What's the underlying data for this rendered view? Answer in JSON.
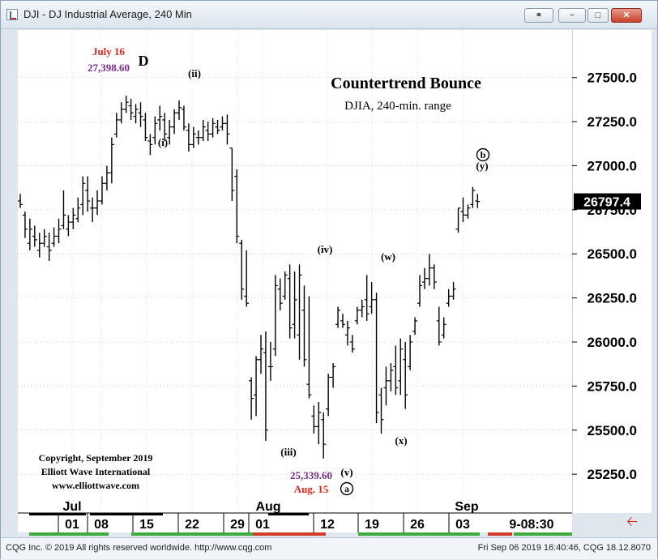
{
  "window": {
    "title": "DJI - DJ Industrial Average, 240 Min",
    "buttons": {
      "link": "⚭",
      "minimize": "−",
      "maximize": "□",
      "close": "✕"
    }
  },
  "status_bar": {
    "left": "CQG Inc. © 2019 All rights reserved worldwide. http://www.cqg.com",
    "right": "Fri Sep 06 2019 16:40:46, CQG 18.12.8070"
  },
  "annotations": {
    "title": "Countertrend Bounce",
    "subtitle": "DJIA, 240-min. range",
    "peak_date": "July 16",
    "peak_value": "27,398.60",
    "wave_D": "D",
    "wave_i": "(i)",
    "wave_ii": "(ii)",
    "wave_iii": "(iii)",
    "wave_iv": "(iv)",
    "wave_v": "(v)",
    "wave_w": "(w)",
    "wave_x": "(x)",
    "wave_y": "(y)",
    "wave_a": "a",
    "wave_b": "b",
    "low_value": "25,339.60",
    "low_date": "Aug. 15",
    "copyright_lines": [
      "Copyright, September 2019",
      "Elliott Wave International",
      "www.elliottwave.com"
    ],
    "last_price": "26797.4",
    "time_readout": "9-08:30"
  },
  "colors": {
    "red": "#e8231a",
    "purple": "#7b2a8c",
    "bars": "#000000",
    "price_box": "#000000"
  },
  "chart_data": {
    "type": "bar",
    "y_tick_labels": [
      "27500.0",
      "27250.0",
      "27000.0",
      "26750.0",
      "26500.0",
      "26250.0",
      "26000.0",
      "25750.0",
      "25500.0",
      "25250.0"
    ],
    "y_ticks": [
      27500,
      27250,
      27000,
      26750,
      26500,
      26250,
      26000,
      25750,
      25500,
      25250
    ],
    "ylim": [
      25030,
      27770
    ],
    "month_labels": [
      "Jul",
      "Aug",
      "Sep"
    ],
    "date_labels": [
      "01",
      "08",
      "15",
      "22",
      "29",
      "01",
      "12",
      "19",
      "26",
      "03"
    ],
    "bars": [
      [
        26840,
        26760,
        26800,
        26780
      ],
      [
        26740,
        26590,
        26720,
        26640
      ],
      [
        26700,
        26520,
        26560,
        26640
      ],
      [
        26660,
        26540,
        26600,
        26580
      ],
      [
        26620,
        26480,
        26520,
        26560
      ],
      [
        26640,
        26540,
        26560,
        26600
      ],
      [
        26620,
        26460,
        26540,
        26520
      ],
      [
        26650,
        26540,
        26560,
        26600
      ],
      [
        26700,
        26560,
        26600,
        26640
      ],
      [
        26860,
        26640,
        26660,
        26720
      ],
      [
        26720,
        26600,
        26640,
        26680
      ],
      [
        26760,
        26640,
        26680,
        26720
      ],
      [
        26820,
        26680,
        26700,
        26760
      ],
      [
        26940,
        26720,
        26780,
        26900
      ],
      [
        26940,
        26740,
        26860,
        26800
      ],
      [
        26820,
        26680,
        26760,
        26760
      ],
      [
        26860,
        26720,
        26760,
        26800
      ],
      [
        26940,
        26780,
        26800,
        26900
      ],
      [
        27000,
        26860,
        26900,
        26960
      ],
      [
        27160,
        26900,
        26960,
        27120
      ],
      [
        27300,
        27160,
        27180,
        27260
      ],
      [
        27360,
        27240,
        27260,
        27320
      ],
      [
        27398,
        27300,
        27320,
        27360
      ],
      [
        27380,
        27260,
        27340,
        27300
      ],
      [
        27350,
        27240,
        27280,
        27320
      ],
      [
        27360,
        27220,
        27300,
        27280
      ],
      [
        27300,
        27140,
        27260,
        27160
      ],
      [
        27180,
        27060,
        27140,
        27120
      ],
      [
        27280,
        27120,
        27160,
        27240
      ],
      [
        27340,
        27200,
        27260,
        27280
      ],
      [
        27300,
        27140,
        27260,
        27180
      ],
      [
        27260,
        27120,
        27160,
        27220
      ],
      [
        27320,
        27180,
        27220,
        27300
      ],
      [
        27370,
        27260,
        27300,
        27330
      ],
      [
        27340,
        27200,
        27320,
        27220
      ],
      [
        27240,
        27080,
        27200,
        27120
      ],
      [
        27220,
        27100,
        27120,
        27180
      ],
      [
        27200,
        27120,
        27160,
        27160
      ],
      [
        27260,
        27140,
        27160,
        27220
      ],
      [
        27250,
        27140,
        27200,
        27180
      ],
      [
        27270,
        27160,
        27180,
        27240
      ],
      [
        27260,
        27180,
        27220,
        27200
      ],
      [
        27280,
        27200,
        27220,
        27240
      ],
      [
        27290,
        27120,
        27240,
        27180
      ],
      [
        27100,
        26800,
        27100,
        26860
      ],
      [
        26980,
        26560,
        26940,
        26600
      ],
      [
        26580,
        26240,
        26560,
        26300
      ],
      [
        26520,
        26200,
        26260,
        26220
      ],
      [
        25800,
        25560,
        25780,
        25680
      ],
      [
        25920,
        25580,
        25700,
        25900
      ],
      [
        26040,
        25820,
        25900,
        25960
      ],
      [
        26060,
        25440,
        25940,
        25500
      ],
      [
        26000,
        25780,
        25860,
        25860
      ],
      [
        26380,
        25920,
        25960,
        26320
      ],
      [
        26360,
        26180,
        26300,
        26220
      ],
      [
        26400,
        26240,
        26260,
        26380
      ],
      [
        26440,
        26020,
        26360,
        26080
      ],
      [
        26400,
        26020,
        26100,
        26240
      ],
      [
        26440,
        25900,
        26040,
        26380
      ],
      [
        26320,
        25860,
        26180,
        25900
      ],
      [
        26260,
        25680,
        25760,
        25700
      ],
      [
        25640,
        25480,
        25580,
        25520
      ],
      [
        25660,
        25420,
        25520,
        25600
      ],
      [
        25600,
        25339,
        25560,
        25420
      ],
      [
        25820,
        25580,
        25620,
        25800
      ],
      [
        25880,
        25740,
        25800,
        25860
      ],
      [
        26200,
        26080,
        26100,
        26180
      ],
      [
        26160,
        26080,
        26120,
        26100
      ],
      [
        26120,
        25980,
        26040,
        26080
      ],
      [
        26040,
        25940,
        26000,
        25960
      ],
      [
        26200,
        26100,
        26120,
        26180
      ],
      [
        26240,
        26140,
        26180,
        26200
      ],
      [
        26380,
        26120,
        26240,
        26160
      ],
      [
        26340,
        26160,
        26200,
        26240
      ],
      [
        26280,
        25540,
        26240,
        25600
      ],
      [
        25740,
        25480,
        25700,
        25560
      ],
      [
        25860,
        25640,
        25740,
        25780
      ],
      [
        25880,
        25720,
        25780,
        25840
      ],
      [
        25980,
        25700,
        25860,
        25740
      ],
      [
        26020,
        25700,
        25780,
        25960
      ],
      [
        26000,
        25620,
        25900,
        25700
      ],
      [
        26040,
        25840,
        25860,
        26000
      ],
      [
        26140,
        26040,
        26060,
        26120
      ],
      [
        26380,
        26200,
        26220,
        26320
      ],
      [
        26420,
        26300,
        26340,
        26360
      ],
      [
        26500,
        26320,
        26360,
        26420
      ],
      [
        26440,
        26300,
        26420,
        26340
      ],
      [
        26200,
        25980,
        26120,
        26000
      ],
      [
        26140,
        26020,
        26040,
        26100
      ],
      [
        26300,
        26200,
        26220,
        26260
      ],
      [
        26340,
        26240,
        26260,
        26300
      ],
      [
        26760,
        26620,
        26640,
        26760
      ],
      [
        26820,
        26680,
        26740,
        26720
      ],
      [
        26780,
        26700,
        26720,
        26760
      ],
      [
        26880,
        26760,
        26780,
        26860
      ],
      [
        26840,
        26760,
        26800,
        26797
      ]
    ]
  }
}
